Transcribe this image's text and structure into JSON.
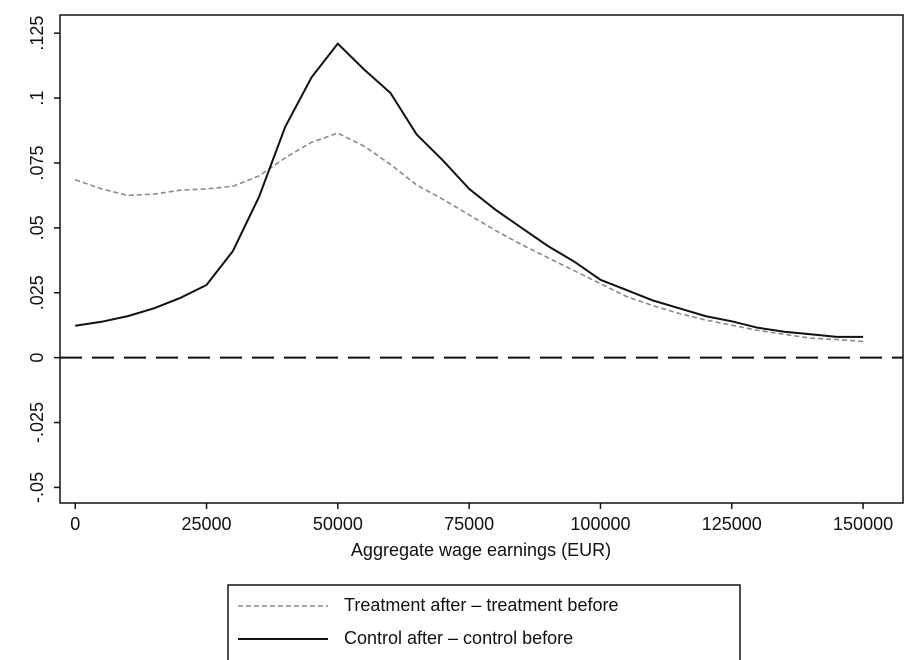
{
  "chart_data": {
    "type": "line",
    "x_label": "Aggregate wage earnings (EUR)",
    "x": [
      0,
      5000,
      10000,
      15000,
      20000,
      25000,
      30000,
      35000,
      40000,
      45000,
      50000,
      55000,
      60000,
      65000,
      70000,
      75000,
      80000,
      85000,
      90000,
      95000,
      100000,
      105000,
      110000,
      115000,
      120000,
      125000,
      130000,
      135000,
      140000,
      145000,
      150000
    ],
    "series": [
      {
        "name": "Treatment after – treatment before",
        "color": "#8a8a8a",
        "dash": true,
        "values": [
          0.0685,
          0.065,
          0.0625,
          0.063,
          0.0645,
          0.065,
          0.066,
          0.07,
          0.077,
          0.083,
          0.0865,
          0.0815,
          0.0745,
          0.0665,
          0.061,
          0.055,
          0.049,
          0.0435,
          0.0385,
          0.0335,
          0.0285,
          0.0235,
          0.02,
          0.017,
          0.0145,
          0.0125,
          0.0105,
          0.009,
          0.0075,
          0.007,
          0.0062
        ]
      },
      {
        "name": "Control after – control before",
        "color": "#111111",
        "dash": false,
        "values": [
          0.0123,
          0.0138,
          0.016,
          0.019,
          0.023,
          0.028,
          0.041,
          0.062,
          0.089,
          0.108,
          0.121,
          0.111,
          0.102,
          0.086,
          0.076,
          0.065,
          0.057,
          0.05,
          0.043,
          0.037,
          0.03,
          0.026,
          0.022,
          0.019,
          0.016,
          0.014,
          0.0115,
          0.01,
          0.009,
          0.008,
          0.008
        ]
      }
    ],
    "xlim": [
      -2900,
      157600
    ],
    "xticks": [
      0,
      25000,
      50000,
      75000,
      100000,
      125000,
      150000
    ],
    "ylim": [
      -0.056,
      0.132
    ],
    "yticks": [
      {
        "value": -0.05,
        "label": "-.05"
      },
      {
        "value": -0.025,
        "label": "-.025"
      },
      0,
      {
        "value": 0.025,
        "label": ".025"
      },
      {
        "value": 0.05,
        "label": ".05"
      },
      {
        "value": 0.075,
        "label": ".075"
      },
      {
        "value": 0.1,
        "label": ".1"
      },
      {
        "value": 0.125,
        "label": ".125"
      }
    ],
    "hline": 0,
    "grid": false,
    "legend": "bottom"
  }
}
